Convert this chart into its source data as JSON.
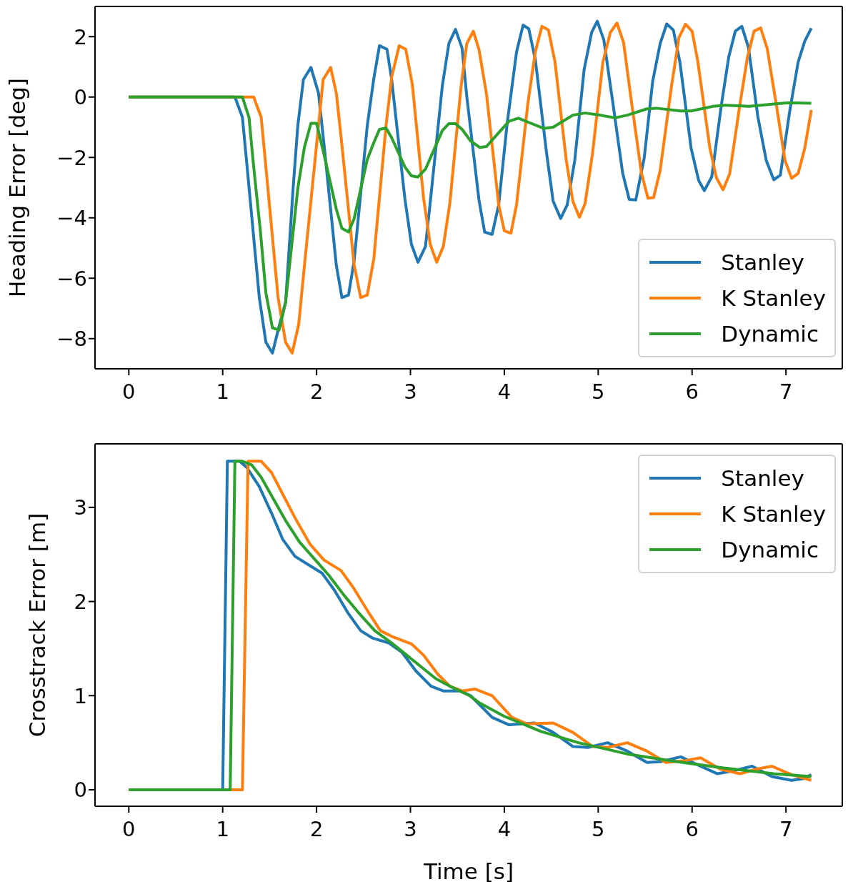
{
  "chart_data": [
    {
      "type": "line",
      "ylabel": "Heading Error [deg]",
      "xlim": [
        -0.36,
        7.6
      ],
      "ylim": [
        -9.0,
        3.0
      ],
      "xticks": [
        0,
        1,
        2,
        3,
        4,
        5,
        6,
        7
      ],
      "yticks": [
        {
          "value": -8,
          "label": "−8"
        },
        {
          "value": -6,
          "label": "−6"
        },
        {
          "value": -4,
          "label": "−4"
        },
        {
          "value": -2,
          "label": "−2"
        },
        0,
        2
      ],
      "legend": "bottom right",
      "line_style": "solid",
      "series": [
        {
          "name": "Stanley",
          "color": "#1f77b4",
          "x": [
            0,
            0.5,
            1.13,
            1.21,
            1.26,
            1.39,
            1.46,
            1.53,
            1.6,
            1.67,
            1.75,
            1.8,
            1.86,
            1.94,
            2.02,
            2.08,
            2.21,
            2.27,
            2.34,
            2.4,
            2.54,
            2.61,
            2.67,
            2.75,
            2.8,
            2.94,
            3.01,
            3.08,
            3.16,
            3.21,
            3.34,
            3.41,
            3.48,
            3.55,
            3.6,
            3.73,
            3.79,
            3.87,
            3.94,
            4.03,
            4.13,
            4.2,
            4.26,
            4.33,
            4.45,
            4.52,
            4.6,
            4.67,
            4.75,
            4.85,
            4.93,
            4.99,
            5.06,
            5.15,
            5.26,
            5.33,
            5.4,
            5.49,
            5.58,
            5.66,
            5.73,
            5.8,
            5.87,
            5.99,
            6.07,
            6.13,
            6.21,
            6.31,
            6.39,
            6.46,
            6.53,
            6.6,
            6.7,
            6.79,
            6.87,
            6.94,
            7.04,
            7.13,
            7.2,
            7.27
          ],
          "values": [
            0,
            0,
            0,
            -0.67,
            -2.31,
            -6.64,
            -8.12,
            -8.48,
            -7.6,
            -6.8,
            -3.03,
            -0.95,
            0.58,
            0.98,
            0.14,
            -1.59,
            -5.56,
            -6.64,
            -6.56,
            -5.43,
            -0.95,
            0.62,
            1.7,
            1.58,
            0.58,
            -3.35,
            -4.87,
            -5.47,
            -4.95,
            -3.51,
            0.38,
            1.78,
            2.24,
            1.62,
            0.02,
            -3.41,
            -4.47,
            -4.55,
            -3.57,
            -0.88,
            1.49,
            2.38,
            2.26,
            1.24,
            -1.86,
            -3.45,
            -4.02,
            -3.57,
            -2.1,
            0.91,
            2.14,
            2.51,
            1.89,
            -0.06,
            -2.51,
            -3.39,
            -3.41,
            -2.02,
            0.51,
            1.77,
            2.42,
            2.22,
            1.16,
            -1.7,
            -2.76,
            -3.1,
            -2.64,
            -0.31,
            1.32,
            2.18,
            2.34,
            1.65,
            -0.64,
            -2.1,
            -2.74,
            -2.59,
            -0.47,
            1.16,
            1.85,
            2.28
          ]
        },
        {
          "name": "K Stanley",
          "color": "#ff7f0e",
          "x": [
            0,
            0.5,
            1.33,
            1.41,
            1.46,
            1.59,
            1.67,
            1.74,
            1.81,
            1.87,
            2.07,
            2.15,
            2.21,
            2.27,
            2.4,
            2.47,
            2.54,
            2.61,
            2.74,
            2.8,
            2.88,
            2.95,
            3.02,
            3.14,
            3.21,
            3.28,
            3.35,
            3.42,
            3.54,
            3.6,
            3.67,
            3.73,
            3.81,
            3.94,
            4.0,
            4.07,
            4.13,
            4.25,
            4.33,
            4.4,
            4.47,
            4.54,
            4.66,
            4.73,
            4.8,
            4.86,
            4.94,
            5.05,
            5.13,
            5.2,
            5.27,
            5.35,
            5.46,
            5.53,
            5.59,
            5.66,
            5.78,
            5.86,
            5.93,
            6.0,
            6.06,
            6.19,
            6.26,
            6.33,
            6.4,
            6.51,
            6.59,
            6.66,
            6.73,
            6.8,
            6.9,
            6.99,
            7.06,
            7.13,
            7.2,
            7.27
          ],
          "values": [
            0,
            0,
            0,
            -0.67,
            -2.31,
            -6.64,
            -8.12,
            -8.48,
            -7.52,
            -5.6,
            0.58,
            0.98,
            0.14,
            -1.59,
            -5.56,
            -6.64,
            -6.56,
            -5.35,
            -0.95,
            0.66,
            1.7,
            1.58,
            0.42,
            -3.35,
            -4.87,
            -5.47,
            -4.95,
            -3.51,
            0.38,
            1.77,
            2.18,
            1.57,
            0.1,
            -3.57,
            -4.43,
            -4.51,
            -3.57,
            -0.23,
            1.49,
            2.34,
            2.22,
            1.16,
            -2.1,
            -3.45,
            -3.98,
            -3.53,
            -1.86,
            1.16,
            2.14,
            2.45,
            1.81,
            -0.06,
            -2.51,
            -3.35,
            -3.33,
            -2.43,
            0.34,
            1.97,
            2.41,
            2.18,
            1.2,
            -1.7,
            -2.68,
            -3.07,
            -2.55,
            -0.23,
            1.32,
            2.18,
            2.29,
            1.61,
            -0.31,
            -2.1,
            -2.69,
            -2.53,
            -1.7,
            -0.43
          ]
        },
        {
          "name": "Dynamic",
          "color": "#2ca02c",
          "x": [
            0,
            0.5,
            1.21,
            1.28,
            1.33,
            1.4,
            1.46,
            1.53,
            1.6,
            1.67,
            1.8,
            1.87,
            1.94,
            2.0,
            2.08,
            2.21,
            2.27,
            2.34,
            2.4,
            2.54,
            2.61,
            2.67,
            2.74,
            2.8,
            2.94,
            3.01,
            3.08,
            3.16,
            3.34,
            3.41,
            3.48,
            3.55,
            3.64,
            3.74,
            3.81,
            3.92,
            4.05,
            4.15,
            4.26,
            4.42,
            4.52,
            4.73,
            4.86,
            5.02,
            5.18,
            5.31,
            5.52,
            5.62,
            5.88,
            5.99,
            6.22,
            6.35,
            6.61,
            6.87,
            7.03,
            7.27
          ],
          "values": [
            0,
            0,
            0,
            -0.67,
            -2.31,
            -4.39,
            -6.48,
            -7.64,
            -7.72,
            -6.8,
            -3.03,
            -1.67,
            -0.87,
            -0.87,
            -1.91,
            -3.71,
            -4.35,
            -4.47,
            -4.03,
            -2.07,
            -1.51,
            -1.07,
            -1.03,
            -1.35,
            -2.31,
            -2.61,
            -2.65,
            -2.39,
            -1.11,
            -0.88,
            -0.88,
            -1.07,
            -1.45,
            -1.67,
            -1.64,
            -1.25,
            -0.8,
            -0.7,
            -0.84,
            -1.04,
            -1.0,
            -0.6,
            -0.53,
            -0.6,
            -0.69,
            -0.6,
            -0.39,
            -0.37,
            -0.46,
            -0.46,
            -0.31,
            -0.27,
            -0.31,
            -0.23,
            -0.19,
            -0.21
          ]
        }
      ]
    },
    {
      "type": "line",
      "xlabel": "Time [s]",
      "ylabel": "Crosstrack Error [m]",
      "xlim": [
        -0.36,
        7.6
      ],
      "ylim": [
        -0.175,
        3.675
      ],
      "xticks": [
        0,
        1,
        2,
        3,
        4,
        5,
        6,
        7
      ],
      "yticks": [
        0,
        1,
        2,
        3
      ],
      "legend": "top right",
      "line_style": "solid",
      "series": [
        {
          "name": "Stanley",
          "color": "#1f77b4",
          "x": [
            0,
            1.0,
            1.05,
            1.18,
            1.26,
            1.39,
            1.52,
            1.64,
            1.77,
            1.93,
            2.06,
            2.19,
            2.34,
            2.47,
            2.6,
            2.77,
            2.91,
            3.06,
            3.22,
            3.35,
            3.53,
            3.64,
            3.87,
            4.05,
            4.32,
            4.52,
            4.73,
            4.89,
            5.1,
            5.31,
            5.52,
            5.67,
            5.88,
            6.09,
            6.27,
            6.43,
            6.64,
            6.85,
            7.06,
            7.19,
            7.27
          ],
          "values": [
            0,
            0,
            3.49,
            3.49,
            3.42,
            3.22,
            2.94,
            2.66,
            2.48,
            2.38,
            2.3,
            2.12,
            1.87,
            1.69,
            1.61,
            1.56,
            1.46,
            1.26,
            1.1,
            1.05,
            1.05,
            1.0,
            0.77,
            0.69,
            0.71,
            0.61,
            0.46,
            0.45,
            0.5,
            0.41,
            0.29,
            0.3,
            0.35,
            0.25,
            0.17,
            0.2,
            0.25,
            0.14,
            0.1,
            0.12,
            0.16
          ]
        },
        {
          "name": "K Stanley",
          "color": "#ff7f0e",
          "x": [
            0,
            1.21,
            1.27,
            1.41,
            1.52,
            1.64,
            1.77,
            1.93,
            2.08,
            2.26,
            2.39,
            2.55,
            2.68,
            2.8,
            3.01,
            3.14,
            3.29,
            3.42,
            3.55,
            3.69,
            3.87,
            4.08,
            4.24,
            4.52,
            4.73,
            4.94,
            5.1,
            5.31,
            5.52,
            5.72,
            5.93,
            6.09,
            6.3,
            6.51,
            6.69,
            6.85,
            7.06,
            7.27
          ],
          "values": [
            0,
            0,
            3.49,
            3.49,
            3.37,
            3.14,
            2.89,
            2.61,
            2.44,
            2.33,
            2.15,
            1.89,
            1.69,
            1.63,
            1.55,
            1.43,
            1.23,
            1.1,
            1.05,
            1.07,
            1.0,
            0.77,
            0.7,
            0.71,
            0.61,
            0.46,
            0.45,
            0.5,
            0.41,
            0.29,
            0.31,
            0.34,
            0.22,
            0.17,
            0.22,
            0.25,
            0.16,
            0.1
          ]
        },
        {
          "name": "Dynamic",
          "color": "#2ca02c",
          "x": [
            0,
            1.08,
            1.13,
            1.21,
            1.31,
            1.41,
            1.54,
            1.67,
            1.82,
            1.98,
            2.13,
            2.29,
            2.44,
            2.62,
            2.8,
            2.96,
            3.11,
            3.27,
            3.42,
            3.63,
            3.74,
            4.0,
            4.39,
            4.79,
            5.31,
            5.83,
            6.35,
            6.87,
            7.27
          ],
          "values": [
            0,
            0,
            3.49,
            3.49,
            3.45,
            3.32,
            3.09,
            2.86,
            2.63,
            2.45,
            2.28,
            2.07,
            1.89,
            1.69,
            1.56,
            1.43,
            1.31,
            1.18,
            1.1,
            1.0,
            0.92,
            0.78,
            0.62,
            0.5,
            0.38,
            0.3,
            0.23,
            0.17,
            0.14
          ]
        }
      ]
    }
  ]
}
